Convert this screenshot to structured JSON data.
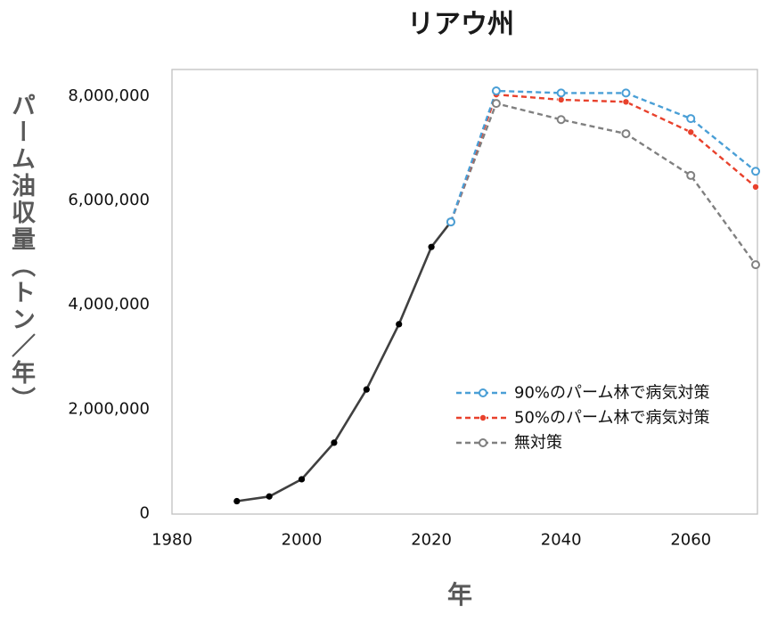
{
  "chart_data": {
    "type": "line",
    "title": "リアウ州",
    "xlabel": "年",
    "ylabel": "パーム油収量（トン／年）",
    "xlim": [
      1980,
      2070
    ],
    "ylim": [
      0,
      8500000
    ],
    "xticks": [
      1980,
      2000,
      2020,
      2040,
      2060
    ],
    "xtick_labels": [
      "1980",
      "2000",
      "2020",
      "2040",
      "2060"
    ],
    "yticks": [
      0,
      2000000,
      4000000,
      6000000,
      8000000
    ],
    "ytick_labels": [
      "0",
      "2,000,000",
      "4,000,000",
      "6,000,000",
      "8,000,000"
    ],
    "grid": false,
    "legend_position": "right",
    "series": [
      {
        "x": [
          1990,
          1995,
          2000,
          2005,
          2010,
          2015,
          2020,
          2023
        ],
        "y": [
          230000,
          320000,
          650000,
          1350000,
          2370000,
          3620000,
          5100000,
          5580000
        ],
        "color": "#404040",
        "marker_color": "#000000",
        "dashed": false,
        "marker": "filled"
      },
      {
        "name": "90%のパーム林で病気対策",
        "x": [
          2023,
          2030,
          2040,
          2050,
          2060,
          2070
        ],
        "y": [
          5580000,
          8090000,
          8050000,
          8050000,
          7560000,
          6550000
        ],
        "color": "#4a9fd6",
        "marker_color": "#4a9fd6",
        "dashed": true,
        "marker": "open"
      },
      {
        "name": "50%のパーム林で病気対策",
        "x": [
          2023,
          2030,
          2040,
          2050,
          2060,
          2070
        ],
        "y": [
          5580000,
          8020000,
          7920000,
          7880000,
          7300000,
          6250000
        ],
        "color": "#e8412c",
        "marker_color": "#e8412c",
        "dashed": true,
        "marker": "filled"
      },
      {
        "name": "無対策",
        "x": [
          2023,
          2030,
          2040,
          2050,
          2060,
          2070
        ],
        "y": [
          5580000,
          7850000,
          7540000,
          7270000,
          6470000,
          4760000
        ],
        "color": "#808080",
        "marker_color": "#808080",
        "dashed": true,
        "marker": "open"
      }
    ]
  }
}
